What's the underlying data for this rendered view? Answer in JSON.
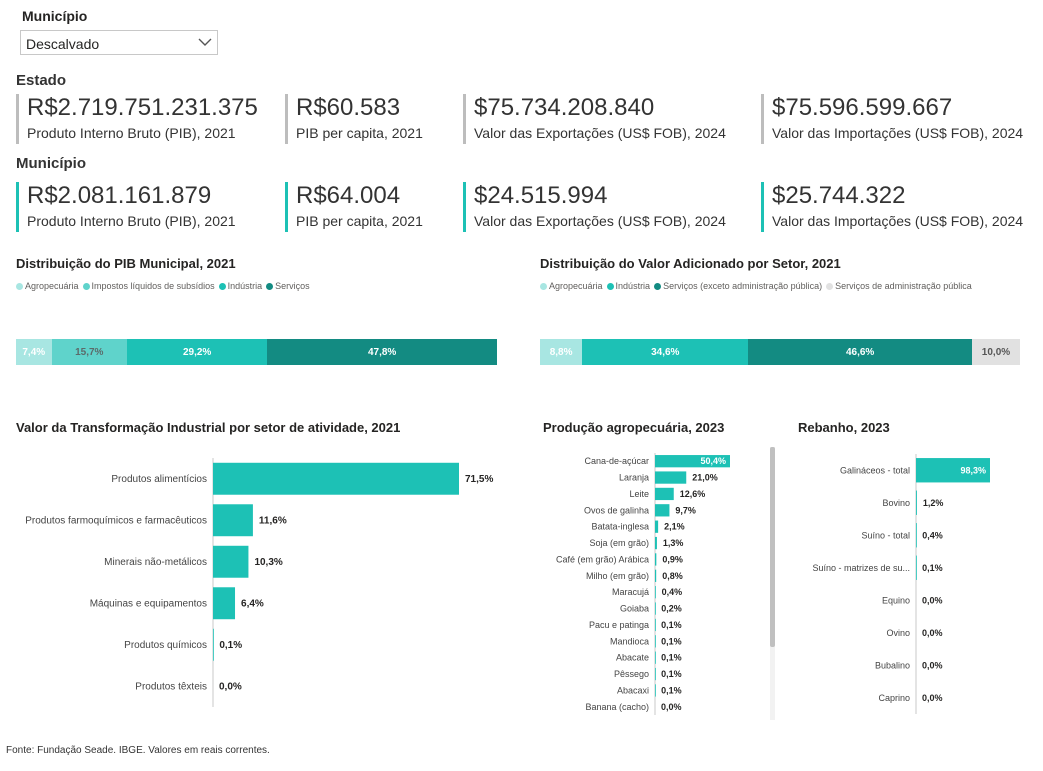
{
  "filter": {
    "label": "Município",
    "selected": "Descalvado"
  },
  "estado": {
    "title": "Estado",
    "kpis": [
      {
        "value": "R$2.719.751.231.375",
        "label": "Produto Interno Bruto (PIB), 2021"
      },
      {
        "value": "R$60.583",
        "label": "PIB per capita, 2021"
      },
      {
        "value": "$75.734.208.840",
        "label": "Valor das Exportações (US$ FOB), 2024"
      },
      {
        "value": "$75.596.599.667",
        "label": "Valor das Importações (US$ FOB), 2024"
      }
    ]
  },
  "municipio": {
    "title": "Município",
    "kpis": [
      {
        "value": "R$2.081.161.879",
        "label": "Produto Interno Bruto (PIB), 2021"
      },
      {
        "value": "R$64.004",
        "label": "PIB per capita, 2021"
      },
      {
        "value": "$24.515.994",
        "label": "Valor das Exportações (US$ FOB), 2024"
      },
      {
        "value": "$25.744.322",
        "label": "Valor das Importações (US$ FOB), 2024"
      }
    ]
  },
  "colors": {
    "c1": "#a8e6e2",
    "c2": "#5fd3cb",
    "c3": "#1dc1b5",
    "c4": "#138b82",
    "c5": "#e1e1e1",
    "bar": "#1dc1b5"
  },
  "source": "Fonte: Fundação Seade. IBGE. Valores em reais correntes.",
  "chart_data": [
    {
      "type": "bar",
      "orientation": "horizontal-stacked",
      "title": "Distribuição do PIB Municipal, 2021",
      "series": [
        {
          "name": "Agropecuária",
          "values": [
            7.4
          ],
          "label": "7,4%"
        },
        {
          "name": "Impostos líquidos de subsídios",
          "values": [
            15.7
          ],
          "label": "15,7%"
        },
        {
          "name": "Indústria",
          "values": [
            29.2
          ],
          "label": "29,2%"
        },
        {
          "name": "Serviços",
          "values": [
            47.8
          ],
          "label": "47,8%"
        }
      ],
      "legend": "top-left"
    },
    {
      "type": "bar",
      "orientation": "horizontal-stacked",
      "title": "Distribuição do Valor Adicionado por Setor, 2021",
      "series": [
        {
          "name": "Agropecuária",
          "values": [
            8.8
          ],
          "label": "8,8%"
        },
        {
          "name": "Indústria",
          "values": [
            34.6
          ],
          "label": "34,6%"
        },
        {
          "name": "Serviços (exceto administração pública)",
          "values": [
            46.6
          ],
          "label": "46,6%"
        },
        {
          "name": "Serviços de administração pública",
          "values": [
            10.0
          ],
          "label": "10,0%"
        }
      ],
      "legend": "top-left"
    },
    {
      "type": "bar",
      "orientation": "horizontal",
      "title": "Valor da Transformação Industrial por setor de atividade, 2021",
      "categories": [
        "Produtos alimentícios",
        "Produtos farmoquímicos e farmacêuticos",
        "Minerais não-metálicos",
        "Máquinas e equipamentos",
        "Produtos químicos",
        "Produtos têxteis"
      ],
      "values": [
        71.5,
        11.6,
        10.3,
        6.4,
        0.1,
        0.0
      ],
      "labels": [
        "71,5%",
        "11,6%",
        "10,3%",
        "6,4%",
        "0,1%",
        "0,0%"
      ]
    },
    {
      "type": "bar",
      "orientation": "horizontal",
      "title": "Produção agropecuária, 2023",
      "categories": [
        "Cana-de-açúcar",
        "Laranja",
        "Leite",
        "Ovos de galinha",
        "Batata-inglesa",
        "Soja (em grão)",
        "Café (em grão) Arábica",
        "Milho (em grão)",
        "Maracujá",
        "Goiaba",
        "Pacu e patinga",
        "Mandioca",
        "Abacate",
        "Pêssego",
        "Abacaxi",
        "Banana (cacho)"
      ],
      "values": [
        50.4,
        21.0,
        12.6,
        9.7,
        2.1,
        1.3,
        0.9,
        0.8,
        0.4,
        0.2,
        0.1,
        0.1,
        0.1,
        0.1,
        0.1,
        0.0
      ],
      "labels": [
        "50,4%",
        "21,0%",
        "12,6%",
        "9,7%",
        "2,1%",
        "1,3%",
        "0,9%",
        "0,8%",
        "0,4%",
        "0,2%",
        "0,1%",
        "0,1%",
        "0,1%",
        "0,1%",
        "0,1%",
        "0,0%"
      ]
    },
    {
      "type": "bar",
      "orientation": "horizontal",
      "title": "Rebanho, 2023",
      "categories": [
        "Galináceos - total",
        "Bovino",
        "Suíno - total",
        "Suíno - matrizes de su...",
        "Equino",
        "Ovino",
        "Bubalino",
        "Caprino"
      ],
      "values": [
        98.3,
        1.2,
        0.4,
        0.1,
        0.0,
        0.0,
        0.0,
        0.0
      ],
      "labels": [
        "98,3%",
        "1,2%",
        "0,4%",
        "0,1%",
        "0,0%",
        "0,0%",
        "0,0%",
        "0,0%"
      ]
    }
  ]
}
